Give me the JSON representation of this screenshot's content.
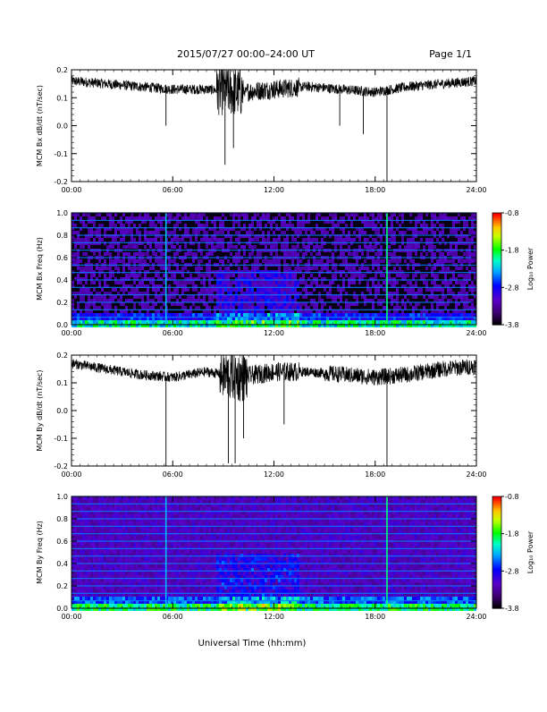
{
  "header": {
    "title": "2015/07/27  00:00–24:00 UT",
    "page_label": "Page 1/1"
  },
  "footer": {
    "xlabel": "Universal Time (hh:mm)"
  },
  "colorbar": {
    "label": "Log₁₀ Power",
    "tick_labels": [
      "-0.8",
      "-1.8",
      "-2.8",
      "-3.8"
    ],
    "range": [
      -3.8,
      -0.8
    ]
  },
  "chart_data": [
    {
      "type": "line",
      "ylabel": "MCM Bx dB/dt (nT/sec)",
      "xlim": [
        0,
        24
      ],
      "ylim": [
        -0.2,
        0.2
      ],
      "x_tick_labels": [
        "00:00",
        "06:00",
        "12:00",
        "18:00",
        "24:00"
      ],
      "y_tick_labels": [
        "-0.2",
        "-0.1",
        "0.0",
        "0.1",
        "0.2"
      ],
      "baseline": [
        {
          "x": 0,
          "y": 0.16
        },
        {
          "x": 2,
          "y": 0.15
        },
        {
          "x": 4,
          "y": 0.14
        },
        {
          "x": 6,
          "y": 0.13
        },
        {
          "x": 8,
          "y": 0.13
        },
        {
          "x": 10,
          "y": 0.12
        },
        {
          "x": 12,
          "y": 0.13
        },
        {
          "x": 14,
          "y": 0.14
        },
        {
          "x": 16,
          "y": 0.13
        },
        {
          "x": 18,
          "y": 0.12
        },
        {
          "x": 20,
          "y": 0.14
        },
        {
          "x": 22,
          "y": 0.15
        },
        {
          "x": 24,
          "y": 0.16
        }
      ],
      "spikes": [
        {
          "x": 5.6,
          "y": 0.0
        },
        {
          "x": 9.1,
          "y": -0.14
        },
        {
          "x": 9.6,
          "y": -0.08
        },
        {
          "x": 15.9,
          "y": 0.0
        },
        {
          "x": 17.3,
          "y": -0.03
        },
        {
          "x": 18.7,
          "y": -0.2
        }
      ]
    },
    {
      "type": "heatmap",
      "ylabel": "MCM Bx Freq (Hz)",
      "xlim": [
        0,
        24
      ],
      "ylim": [
        0,
        1.0
      ],
      "x_tick_labels": [
        "00:00",
        "06:00",
        "12:00",
        "18:00",
        "24:00"
      ],
      "y_tick_labels": [
        "0.0",
        "0.2",
        "0.4",
        "0.6",
        "0.8",
        "1.0"
      ],
      "harmonic_lines_hz": [
        0.067,
        0.133,
        0.2,
        0.267,
        0.333,
        0.4,
        0.467,
        0.533,
        0.6,
        0.667,
        0.733,
        0.8,
        0.867,
        0.933,
        1.0
      ],
      "vertical_lines_hr": [
        5.6,
        18.7
      ]
    },
    {
      "type": "line",
      "ylabel": "MCM By dB/dt (nT/sec)",
      "xlim": [
        0,
        24
      ],
      "ylim": [
        -0.2,
        0.2
      ],
      "x_tick_labels": [
        "00:00",
        "06:00",
        "12:00",
        "18:00",
        "24:00"
      ],
      "y_tick_labels": [
        "-0.2",
        "-0.1",
        "0.0",
        "0.1",
        "0.2"
      ],
      "baseline": [
        {
          "x": 0,
          "y": 0.17
        },
        {
          "x": 2,
          "y": 0.15
        },
        {
          "x": 4,
          "y": 0.13
        },
        {
          "x": 6,
          "y": 0.12
        },
        {
          "x": 8,
          "y": 0.14
        },
        {
          "x": 10,
          "y": 0.12
        },
        {
          "x": 12,
          "y": 0.14
        },
        {
          "x": 14,
          "y": 0.14
        },
        {
          "x": 16,
          "y": 0.13
        },
        {
          "x": 18,
          "y": 0.12
        },
        {
          "x": 20,
          "y": 0.13
        },
        {
          "x": 22,
          "y": 0.15
        },
        {
          "x": 24,
          "y": 0.16
        }
      ],
      "spikes": [
        {
          "x": 5.6,
          "y": -0.2
        },
        {
          "x": 9.3,
          "y": -0.19
        },
        {
          "x": 9.7,
          "y": -0.19
        },
        {
          "x": 10.2,
          "y": -0.1
        },
        {
          "x": 12.6,
          "y": -0.05
        },
        {
          "x": 18.7,
          "y": -0.2
        }
      ]
    },
    {
      "type": "heatmap",
      "ylabel": "MCM By Freq (Hz)",
      "xlim": [
        0,
        24
      ],
      "ylim": [
        0,
        1.0
      ],
      "x_tick_labels": [
        "00:00",
        "06:00",
        "12:00",
        "18:00",
        "24:00"
      ],
      "y_tick_labels": [
        "0.0",
        "0.2",
        "0.4",
        "0.6",
        "0.8",
        "1.0"
      ],
      "harmonic_lines_hz": [
        0.067,
        0.133,
        0.2,
        0.267,
        0.333,
        0.4,
        0.467,
        0.533,
        0.6,
        0.667,
        0.733,
        0.8,
        0.867,
        0.933,
        1.0
      ],
      "vertical_lines_hr": [
        5.6,
        18.7
      ]
    }
  ]
}
